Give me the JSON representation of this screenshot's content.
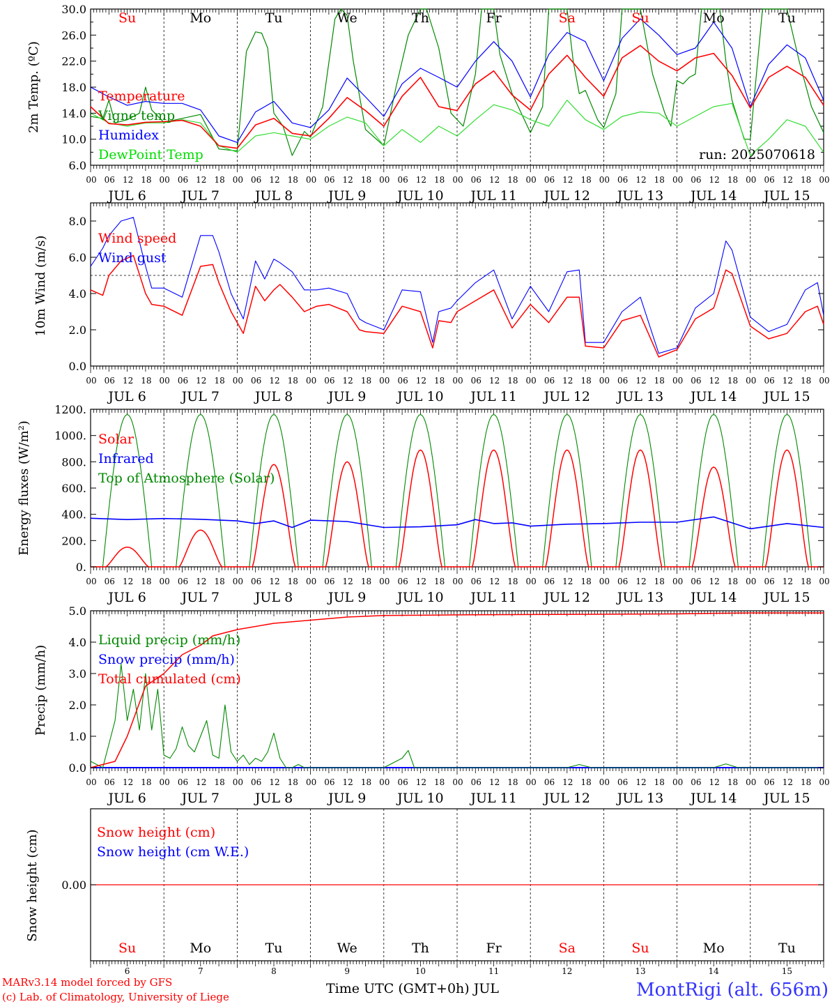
{
  "run_label": "run: 2025070618",
  "footer": {
    "credit_line1": "MARv3.14 model forced by GFS",
    "credit_line2": "(c) Lab. of Climatology, University of Liege",
    "time_axis_label": "Time UTC (GMT+0h) JUL",
    "station": "MontRigi (alt. 656m)"
  },
  "colors": {
    "red": "#ff0000",
    "green": "#008800",
    "blue": "#0000ff",
    "lightgreen": "#33dd33",
    "dewpoint_text": "#00dd00"
  },
  "days": [
    {
      "abbr": "Su",
      "date": "JUL  6",
      "num": "6",
      "weekend": true
    },
    {
      "abbr": "Mo",
      "date": "JUL  7",
      "num": "7",
      "weekend": false
    },
    {
      "abbr": "Tu",
      "date": "JUL  8",
      "num": "8",
      "weekend": false
    },
    {
      "abbr": "We",
      "date": "JUL  9",
      "num": "9",
      "weekend": false
    },
    {
      "abbr": "Th",
      "date": "JUL 10",
      "num": "10",
      "weekend": false
    },
    {
      "abbr": "Fr",
      "date": "JUL 11",
      "num": "11",
      "weekend": false
    },
    {
      "abbr": "Sa",
      "date": "JUL 12",
      "num": "12",
      "weekend": true
    },
    {
      "abbr": "Su",
      "date": "JUL 13",
      "num": "13",
      "weekend": true
    },
    {
      "abbr": "Mo",
      "date": "JUL 14",
      "num": "14",
      "weekend": false
    },
    {
      "abbr": "Tu",
      "date": "JUL 15",
      "num": "15",
      "weekend": false
    }
  ],
  "hour_labels": [
    "00",
    "06",
    "12",
    "18"
  ],
  "chart_data": [
    {
      "type": "line",
      "ylabel": "2m Temp. (ºC)",
      "ylim": [
        6,
        30
      ],
      "yticks": [
        "6.0",
        "10.0",
        "14.0",
        "18.0",
        "22.0",
        "26.0",
        "30.0"
      ],
      "x_unit": "hours since JUL 6 00 UTC",
      "series": [
        {
          "name": "Temperature",
          "color": "#ff0000",
          "x": [
            0,
            6,
            12,
            18,
            24,
            30,
            36,
            42,
            48,
            54,
            60,
            66,
            72,
            78,
            84,
            90,
            96,
            102,
            108,
            114,
            120,
            126,
            132,
            138,
            144,
            150,
            156,
            162,
            168,
            174,
            180,
            186,
            192,
            198,
            204,
            210,
            216,
            222,
            228,
            234,
            240
          ],
          "y": [
            15.0,
            12.4,
            12.2,
            12.6,
            12.7,
            12.9,
            12.0,
            9.0,
            8.6,
            12.2,
            13.2,
            10.9,
            10.5,
            13.2,
            16.4,
            14.4,
            12.0,
            16.6,
            19.5,
            15.0,
            14.4,
            18.5,
            20.5,
            16.8,
            14.5,
            20.0,
            22.9,
            19.5,
            16.6,
            22.5,
            24.4,
            22.0,
            20.5,
            22.5,
            23.2,
            19.8,
            14.8,
            19.5,
            21.2,
            19.5,
            15.2
          ]
        },
        {
          "name": "Vigne temp",
          "color": "#008800",
          "x": [
            0,
            4,
            6,
            8,
            12,
            16,
            18,
            20,
            24,
            30,
            36,
            42,
            48,
            51,
            54,
            56,
            58,
            60,
            63,
            66,
            70,
            72,
            76,
            80,
            82,
            84,
            86,
            90,
            96,
            100,
            104,
            108,
            110,
            114,
            118,
            122,
            126,
            128,
            130,
            132,
            134,
            138,
            144,
            148,
            150,
            152,
            156,
            158,
            160,
            162,
            166,
            168,
            172,
            174,
            176,
            178,
            180,
            184,
            186,
            188,
            190,
            192,
            194,
            196,
            198,
            200,
            204,
            206,
            208,
            210,
            212,
            214,
            216,
            220,
            222,
            224,
            228,
            232,
            236,
            240
          ],
          "y": [
            13.5,
            13.2,
            16.0,
            12.5,
            13.0,
            14.0,
            18.0,
            14.5,
            12.6,
            13.2,
            13.8,
            8.5,
            8.2,
            23.5,
            26.5,
            26.3,
            24.0,
            14.0,
            12.0,
            7.5,
            11.2,
            10.3,
            15.0,
            28.5,
            30.0,
            29.0,
            22.0,
            11.5,
            9.0,
            18.0,
            26.0,
            30.0,
            30.0,
            24.0,
            14.0,
            12.0,
            20.0,
            30.0,
            30.0,
            30.0,
            23.0,
            17.0,
            11.0,
            15.0,
            30.0,
            30.0,
            30.0,
            22.0,
            17.0,
            17.5,
            13.0,
            11.8,
            17.0,
            30.0,
            30.0,
            30.0,
            30.0,
            20.0,
            17.0,
            14.0,
            12.0,
            19.0,
            18.5,
            19.5,
            20.0,
            30.0,
            30.0,
            30.0,
            22.0,
            16.0,
            13.0,
            10.0,
            10.0,
            30.0,
            30.0,
            30.0,
            30.0,
            22.0,
            15.0,
            11.0
          ]
        },
        {
          "name": "Humidex",
          "color": "#0000ff",
          "x": [
            0,
            6,
            12,
            18,
            24,
            30,
            36,
            42,
            48,
            54,
            60,
            66,
            72,
            78,
            84,
            90,
            96,
            102,
            108,
            114,
            120,
            126,
            132,
            138,
            144,
            150,
            156,
            162,
            168,
            174,
            180,
            186,
            192,
            198,
            204,
            210,
            216,
            222,
            228,
            234,
            240
          ],
          "y": [
            18.0,
            16.5,
            15.2,
            15.8,
            15.5,
            15.5,
            14.5,
            10.5,
            9.5,
            14.2,
            15.8,
            12.5,
            11.8,
            14.5,
            19.4,
            16.5,
            13.5,
            18.5,
            20.9,
            19.5,
            18.0,
            22.0,
            25.0,
            22.0,
            16.5,
            23.0,
            26.4,
            25.0,
            19.0,
            25.5,
            28.5,
            26.0,
            23.0,
            24.0,
            28.0,
            24.0,
            15.0,
            21.5,
            24.5,
            22.5,
            16.0
          ]
        },
        {
          "name": "DewPoint Temp",
          "color": "#33dd33",
          "x": [
            0,
            6,
            12,
            18,
            24,
            30,
            36,
            42,
            48,
            54,
            60,
            66,
            72,
            78,
            84,
            90,
            96,
            102,
            108,
            114,
            120,
            126,
            132,
            138,
            144,
            150,
            156,
            162,
            168,
            174,
            180,
            186,
            192,
            198,
            204,
            210,
            216,
            222,
            228,
            234,
            240
          ],
          "y": [
            14.0,
            12.5,
            12.0,
            12.5,
            12.5,
            13.0,
            12.5,
            9.0,
            8.0,
            10.5,
            11.0,
            10.5,
            10.0,
            12.0,
            13.4,
            12.5,
            9.0,
            11.5,
            9.5,
            12.0,
            10.5,
            13.0,
            15.3,
            14.5,
            13.0,
            12.0,
            16.0,
            13.0,
            11.5,
            13.5,
            14.2,
            14.0,
            12.0,
            13.5,
            15.0,
            15.5,
            7.5,
            10.0,
            13.0,
            12.0,
            8.0
          ]
        }
      ]
    },
    {
      "type": "line",
      "ylabel": "10m Wind (m/s)",
      "ylim": [
        0,
        9
      ],
      "yticks": [
        "0.0",
        "2.0",
        "4.0",
        "6.0",
        "8.0"
      ],
      "reference_line": 5.0,
      "series": [
        {
          "name": "Wind speed",
          "color": "#ff0000",
          "x": [
            0,
            4,
            6,
            10,
            14,
            18,
            20,
            24,
            30,
            36,
            40,
            42,
            46,
            50,
            54,
            57,
            60,
            62,
            66,
            70,
            74,
            78,
            84,
            88,
            90,
            96,
            102,
            108,
            112,
            114,
            118,
            120,
            126,
            132,
            138,
            144,
            150,
            156,
            160,
            162,
            168,
            174,
            180,
            186,
            192,
            198,
            204,
            208,
            210,
            216,
            222,
            228,
            234,
            238,
            240
          ],
          "y": [
            4.2,
            3.9,
            5.0,
            5.8,
            6.1,
            4.0,
            3.4,
            3.3,
            2.8,
            5.5,
            5.6,
            4.6,
            3.0,
            1.8,
            4.4,
            3.6,
            4.2,
            4.5,
            3.8,
            3.0,
            3.3,
            3.4,
            3.0,
            2.0,
            1.9,
            1.8,
            3.3,
            3.0,
            1.0,
            2.5,
            2.4,
            3.0,
            3.6,
            4.2,
            2.1,
            3.4,
            2.4,
            3.8,
            3.8,
            1.1,
            1.0,
            2.5,
            2.8,
            0.5,
            0.9,
            2.6,
            3.2,
            5.3,
            5.1,
            2.2,
            1.5,
            1.8,
            3.0,
            3.3,
            2.3
          ]
        },
        {
          "name": "Wind gust",
          "color": "#0000ff",
          "x": [
            0,
            4,
            6,
            10,
            14,
            18,
            20,
            24,
            30,
            36,
            40,
            42,
            46,
            50,
            54,
            57,
            60,
            62,
            66,
            70,
            74,
            78,
            84,
            88,
            90,
            96,
            102,
            108,
            112,
            114,
            118,
            120,
            126,
            132,
            138,
            144,
            150,
            156,
            160,
            162,
            168,
            174,
            180,
            186,
            192,
            198,
            204,
            208,
            210,
            216,
            222,
            228,
            234,
            238,
            240
          ],
          "y": [
            5.5,
            6.5,
            7.2,
            8.0,
            8.2,
            5.5,
            4.3,
            4.3,
            3.8,
            7.2,
            7.2,
            6.3,
            4.0,
            2.6,
            5.8,
            4.8,
            5.9,
            5.7,
            5.2,
            4.2,
            4.2,
            4.3,
            4.0,
            2.6,
            2.4,
            2.0,
            4.2,
            4.1,
            1.3,
            3.0,
            3.2,
            3.6,
            4.6,
            5.3,
            2.6,
            4.4,
            3.0,
            5.2,
            5.3,
            1.3,
            1.3,
            3.0,
            3.8,
            0.7,
            1.0,
            3.2,
            4.0,
            6.9,
            6.4,
            2.7,
            1.9,
            2.3,
            4.2,
            4.6,
            2.8
          ]
        }
      ]
    },
    {
      "type": "line",
      "ylabel": "Energy fluxes (W/m²)",
      "ylim": [
        0,
        1200
      ],
      "yticks": [
        "0.",
        "200.",
        "400.",
        "600.",
        "800.",
        "1000.",
        "1200."
      ],
      "series": [
        {
          "name": "Solar",
          "color": "#ff0000",
          "day_peaks": [
            150,
            280,
            780,
            800,
            890,
            890,
            890,
            890,
            760,
            890
          ]
        },
        {
          "name": "Infrared",
          "color": "#0000ff",
          "x": [
            0,
            12,
            24,
            36,
            48,
            54,
            60,
            66,
            72,
            84,
            96,
            108,
            120,
            126,
            132,
            138,
            144,
            156,
            168,
            180,
            192,
            204,
            216,
            228,
            240
          ],
          "y": [
            370,
            360,
            368,
            362,
            350,
            330,
            350,
            300,
            355,
            345,
            300,
            305,
            320,
            360,
            330,
            335,
            310,
            325,
            330,
            340,
            340,
            380,
            290,
            330,
            300
          ]
        },
        {
          "name": "Top of Atmosphere (Solar)",
          "color": "#008800",
          "daily_peak": 1160,
          "sunrise_hour": 4,
          "sunset_hour": 20
        }
      ]
    },
    {
      "type": "line",
      "ylabel": "Precip (mm/h)",
      "ylim": [
        0,
        5
      ],
      "yticks": [
        "0.0",
        "1.0",
        "2.0",
        "3.0",
        "4.0",
        "5.0"
      ],
      "series": [
        {
          "name": "Liquid precip (mm/h)",
          "color": "#008800",
          "x": [
            0,
            4,
            8,
            10,
            12,
            14,
            16,
            18,
            20,
            22,
            24,
            26,
            28,
            30,
            32,
            34,
            36,
            38,
            40,
            42,
            44,
            46,
            48,
            50,
            52,
            54,
            56,
            58,
            60,
            62,
            64,
            66,
            68,
            70,
            72,
            74,
            76,
            78,
            80,
            96,
            98,
            100,
            102,
            104,
            106,
            108,
            110,
            112,
            156,
            160,
            164,
            168,
            204,
            208,
            212,
            240
          ],
          "y": [
            0.2,
            0.0,
            1.5,
            3.3,
            1.5,
            2.5,
            1.2,
            3.0,
            1.2,
            2.5,
            0.4,
            0.3,
            0.6,
            1.3,
            0.7,
            0.5,
            1.0,
            1.5,
            0.4,
            0.3,
            2.0,
            0.5,
            0.2,
            0.4,
            0.1,
            0.3,
            0.2,
            0.5,
            1.1,
            0.3,
            0.0,
            0.0,
            0.1,
            0.0,
            0.0,
            0.0,
            0.0,
            0.0,
            0.0,
            0.0,
            0.1,
            0.2,
            0.3,
            0.55,
            0.0,
            0.0,
            0.0,
            0.0,
            0.0,
            0.1,
            0.0,
            0.0,
            0.0,
            0.12,
            0.0,
            0.0
          ]
        },
        {
          "name": "Snow precip (mm/h)",
          "color": "#0000ff",
          "constant": 0.0
        },
        {
          "name": "Total cumulated (cm)",
          "color": "#ff0000",
          "x": [
            0,
            8,
            12,
            18,
            24,
            30,
            36,
            40,
            48,
            60,
            72,
            84,
            96,
            120,
            144,
            168,
            192,
            204,
            216,
            240
          ],
          "y": [
            0.0,
            0.2,
            1.0,
            2.6,
            3.0,
            3.6,
            3.9,
            4.2,
            4.4,
            4.6,
            4.7,
            4.8,
            4.85,
            4.87,
            4.88,
            4.89,
            4.9,
            4.92,
            4.93,
            4.93
          ]
        }
      ]
    },
    {
      "type": "line",
      "ylabel": "Snow height (cm)",
      "yticks": [
        "0.00"
      ],
      "series": [
        {
          "name": "Snow height (cm)",
          "color": "#ff0000",
          "constant": 0.0
        },
        {
          "name": "Snow height (cm W.E.)",
          "color": "#0000ff",
          "constant": 0.0
        }
      ]
    }
  ]
}
